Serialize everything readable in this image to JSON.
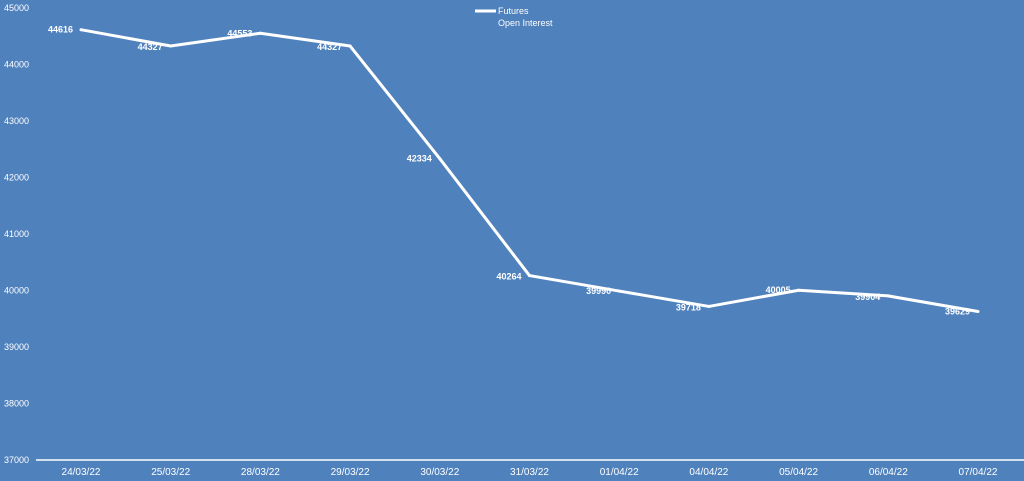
{
  "chart_data": {
    "type": "line",
    "title": "",
    "xlabel": "",
    "ylabel": "",
    "categories": [
      "24/03/22",
      "25/03/22",
      "28/03/22",
      "29/03/22",
      "30/03/22",
      "31/03/22",
      "01/04/22",
      "04/04/22",
      "05/04/22",
      "06/04/22",
      "07/04/22"
    ],
    "series": [
      {
        "name": "Futures Open Interest",
        "legend_lines": [
          "Futures",
          "Open Interest"
        ],
        "values": [
          44616,
          44327,
          44553,
          44327,
          42334,
          40264,
          39990,
          39718,
          40005,
          39904,
          39629
        ],
        "labels": [
          "44616",
          "44327",
          "44553",
          "44327",
          "42334",
          "40264",
          "39990",
          "39718",
          "40005",
          "39904",
          "39629"
        ]
      }
    ],
    "ylim": [
      37000,
      45000
    ],
    "yticks": [
      37000,
      38000,
      39000,
      40000,
      41000,
      42000,
      43000,
      44000,
      45000
    ],
    "ytick_labels": [
      "37000",
      "38000",
      "39000",
      "40000",
      "41000",
      "42000",
      "43000",
      "44000",
      "45000"
    ],
    "grid": false,
    "drop_lines": true,
    "legend_position": "top-center",
    "colors": {
      "background": "#4f81bd",
      "line": "#ffffff"
    }
  }
}
